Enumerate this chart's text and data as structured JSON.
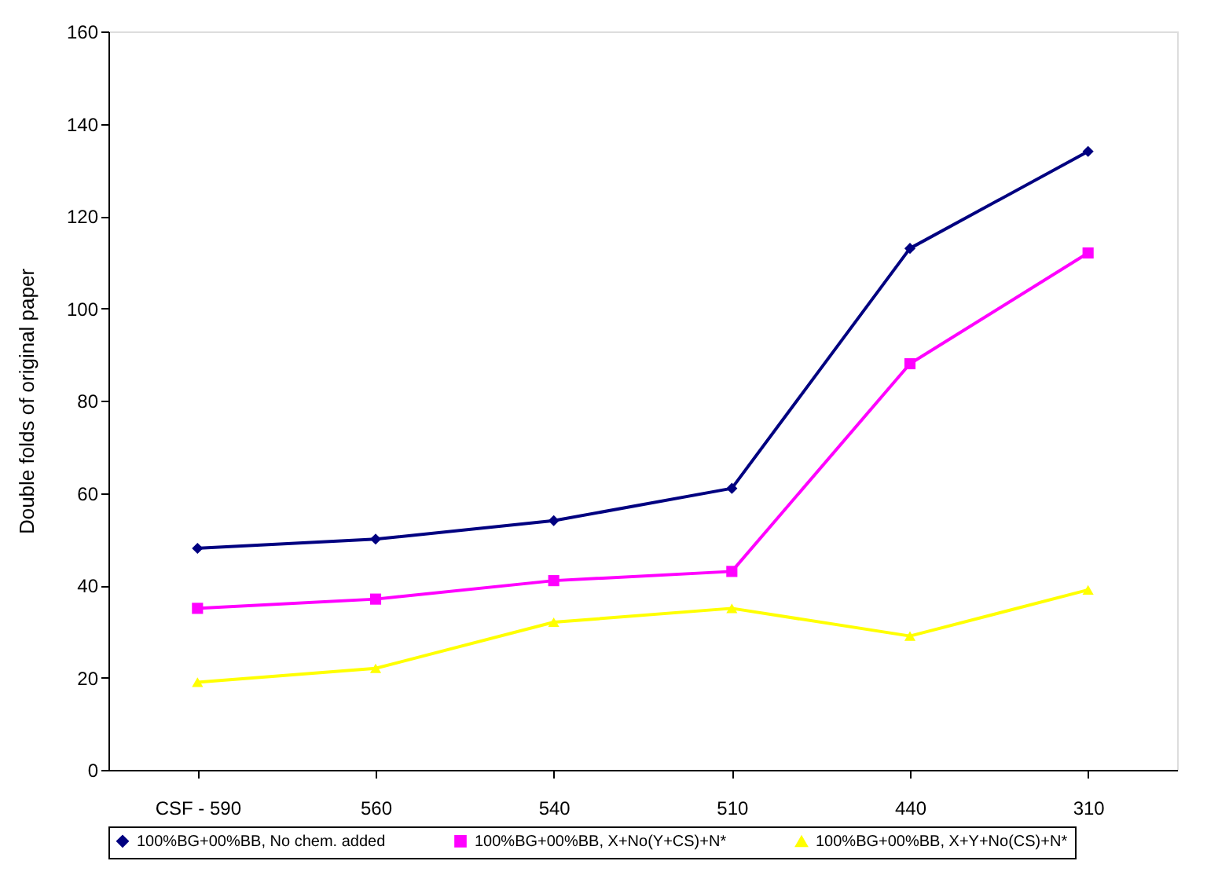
{
  "chart_data": {
    "type": "line",
    "ylabel": "Double folds of original paper",
    "categories": [
      "CSF - 590",
      "560",
      "540",
      "510",
      "440",
      "310"
    ],
    "series": [
      {
        "name": "100%BG+00%BB, No chem. added",
        "color": "#000080",
        "marker": "diamond",
        "values": [
          48,
          50,
          54,
          61,
          113,
          134
        ]
      },
      {
        "name": "100%BG+00%BB, X+No(Y+CS)+N*",
        "color": "#ff00ff",
        "marker": "square",
        "values": [
          35,
          37,
          41,
          43,
          88,
          112
        ]
      },
      {
        "name": "100%BG+00%BB, X+Y+No(CS)+N*",
        "color": "#ffff00",
        "marker": "triangle",
        "values": [
          19,
          22,
          32,
          35,
          29,
          39
        ]
      }
    ],
    "ylim": [
      0,
      160
    ],
    "yticks": [
      0,
      20,
      40,
      60,
      80,
      100,
      120,
      140,
      160
    ],
    "grid": false,
    "legend": "bottom",
    "line_style": "solid"
  }
}
